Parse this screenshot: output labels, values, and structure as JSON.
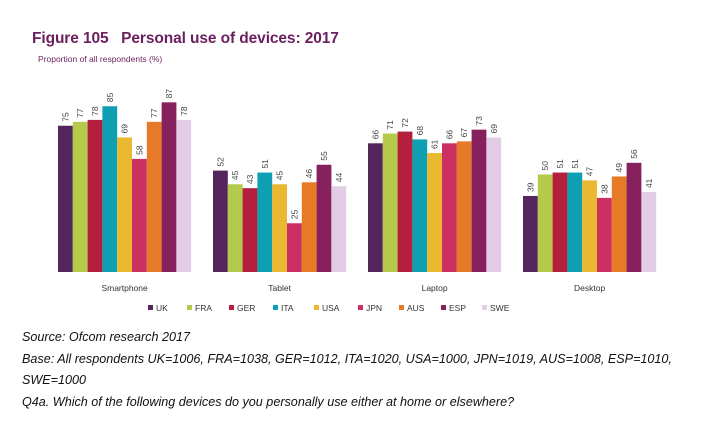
{
  "figure": {
    "title": "Figure 105   Personal use of devices: 2017",
    "subtitle": "Proportion of all respondents (%)"
  },
  "chart_data": {
    "type": "bar",
    "title": "Personal use of devices: 2017",
    "ylabel": "Proportion of all respondents (%)",
    "xlabel": "",
    "categories": [
      "Smartphone",
      "Tablet",
      "Laptop",
      "Desktop"
    ],
    "ylim": [
      0,
      100
    ],
    "grid": false,
    "legend_position": "bottom",
    "series": [
      {
        "name": "UK",
        "color": "#55255e",
        "values": [
          75,
          52,
          66,
          39
        ]
      },
      {
        "name": "FRA",
        "color": "#b5c94a",
        "values": [
          77,
          45,
          71,
          50
        ]
      },
      {
        "name": "GER",
        "color": "#b31f3c",
        "values": [
          78,
          43,
          72,
          51
        ]
      },
      {
        "name": "ITA",
        "color": "#0e9fb3",
        "values": [
          85,
          51,
          68,
          51
        ]
      },
      {
        "name": "USA",
        "color": "#ebb832",
        "values": [
          69,
          45,
          61,
          47
        ]
      },
      {
        "name": "JPN",
        "color": "#cc2f61",
        "values": [
          58,
          25,
          66,
          38
        ]
      },
      {
        "name": "AUS",
        "color": "#e67a26",
        "values": [
          77,
          46,
          67,
          49
        ]
      },
      {
        "name": "ESP",
        "color": "#86215e",
        "values": [
          87,
          55,
          73,
          56
        ]
      },
      {
        "name": "SWE",
        "color": "#e2cce6",
        "values": [
          78,
          44,
          69,
          41
        ]
      }
    ]
  },
  "notes": {
    "source": "Source: Ofcom research 2017",
    "base_line1": "Base: All respondents UK=1006, FRA=1038, GER=1012, ITA=1020, USA=1000, JPN=1019, AUS=1008, ESP=1010,",
    "base_line2": "SWE=1000",
    "question": "Q4a. Which of the following devices do you personally use either at home or elsewhere?"
  }
}
